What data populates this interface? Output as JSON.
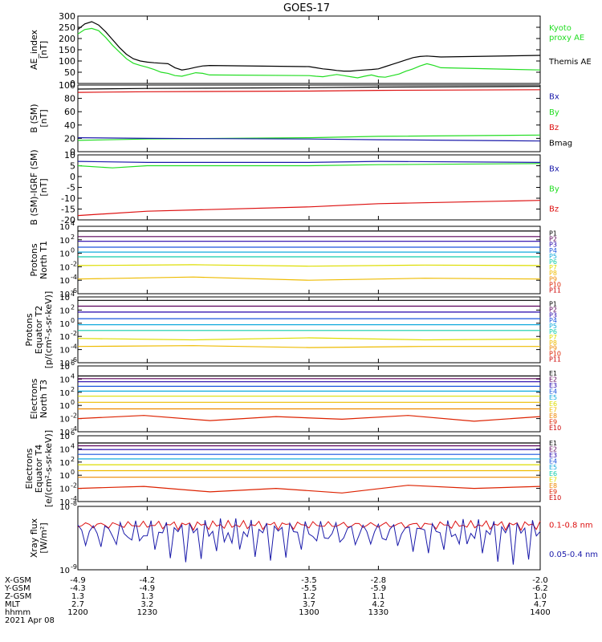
{
  "title": "GOES-17",
  "colors": {
    "black": "#000000",
    "green": "#22dd22",
    "red": "#dd1111",
    "blue": "#1a1aaa",
    "p1": "#000000",
    "p2": "#5a005a",
    "p3": "#2200aa",
    "p4": "#1a55dd",
    "p5": "#11aadd",
    "p6": "#11ccaa",
    "p7": "#dddd00",
    "p8": "#eebb00",
    "p9": "#ee8800",
    "p10": "#dd2200",
    "p11": "#cc0000"
  },
  "chart_data": [
    {
      "type": "line",
      "ylabel": [
        "AE_index",
        "[nT]"
      ],
      "ylim": [
        0,
        300
      ],
      "yticks": [
        "0",
        "50",
        "100",
        "150",
        "200",
        "250",
        "300"
      ],
      "legend": [
        {
          "text": "Kyoto",
          "color": "green"
        },
        {
          "text": "proxy AE",
          "color": "green"
        },
        {
          "text": "Themis AE",
          "color": "black"
        }
      ],
      "series": [
        {
          "name": "Themis AE",
          "color": "black",
          "x": [
            1200,
            1203,
            1206,
            1209,
            1212,
            1215,
            1218,
            1221,
            1224,
            1227,
            1230,
            1233,
            1236,
            1239,
            1242,
            1245,
            1248,
            1251,
            1254,
            1257,
            1300,
            1303,
            1306,
            1309,
            1312,
            1315,
            1318,
            1321,
            1324,
            1327,
            1330,
            1333,
            1336,
            1339,
            1342,
            1345,
            1348,
            1351,
            1354,
            1357,
            1400
          ],
          "y": [
            240,
            265,
            275,
            260,
            230,
            195,
            160,
            130,
            110,
            100,
            95,
            92,
            90,
            88,
            70,
            60,
            65,
            72,
            78,
            80,
            75,
            70,
            65,
            62,
            58,
            55,
            55,
            58,
            60,
            62,
            65,
            75,
            85,
            95,
            105,
            115,
            120,
            122,
            120,
            118,
            125
          ]
        },
        {
          "name": "Kyoto proxy AE",
          "color": "green",
          "x": [
            1200,
            1203,
            1206,
            1209,
            1212,
            1215,
            1218,
            1221,
            1224,
            1227,
            1230,
            1233,
            1236,
            1239,
            1242,
            1245,
            1248,
            1251,
            1254,
            1257,
            1300,
            1303,
            1306,
            1309,
            1312,
            1315,
            1318,
            1321,
            1324,
            1327,
            1330,
            1333,
            1336,
            1339,
            1342,
            1345,
            1348,
            1351,
            1354,
            1357,
            1400
          ],
          "y": [
            220,
            240,
            245,
            235,
            205,
            170,
            140,
            110,
            90,
            80,
            72,
            62,
            50,
            45,
            35,
            32,
            40,
            48,
            45,
            38,
            35,
            32,
            30,
            35,
            40,
            35,
            30,
            25,
            32,
            38,
            30,
            28,
            35,
            42,
            55,
            65,
            78,
            88,
            80,
            70,
            60
          ]
        }
      ]
    },
    {
      "type": "line",
      "ylabel": [
        "B (SM)",
        "[nT]"
      ],
      "ylim": [
        0,
        100
      ],
      "yticks": [
        "0",
        "20",
        "40",
        "60",
        "80",
        "100"
      ],
      "legend": [
        {
          "text": "Bx",
          "color": "blue"
        },
        {
          "text": "By",
          "color": "green"
        },
        {
          "text": "Bz",
          "color": "red"
        },
        {
          "text": "Bmag",
          "color": "black"
        }
      ],
      "series": [
        {
          "name": "Bmag",
          "color": "black",
          "x": [
            1200,
            1230,
            1300,
            1330,
            1400
          ],
          "y": [
            94,
            95,
            96,
            97,
            98
          ]
        },
        {
          "name": "Bz",
          "color": "red",
          "x": [
            1200,
            1230,
            1300,
            1330,
            1400
          ],
          "y": [
            89,
            90,
            91,
            92,
            93
          ]
        },
        {
          "name": "By",
          "color": "green",
          "x": [
            1200,
            1230,
            1300,
            1330,
            1400
          ],
          "y": [
            17,
            19,
            21,
            23,
            25
          ]
        },
        {
          "name": "Bx",
          "color": "blue",
          "x": [
            1200,
            1230,
            1300,
            1330,
            1400
          ],
          "y": [
            21,
            20,
            19,
            18,
            16
          ]
        }
      ]
    },
    {
      "type": "line",
      "ylabel": [
        "B (SM)-IGRF (SM)",
        "[nT]"
      ],
      "ylim": [
        -20,
        10
      ],
      "yticks": [
        "-20",
        "-15",
        "-10",
        "-5",
        "0",
        "5",
        "10"
      ],
      "legend": [
        {
          "text": "Bx",
          "color": "blue"
        },
        {
          "text": "By",
          "color": "green"
        },
        {
          "text": "Bz",
          "color": "red"
        }
      ],
      "series": [
        {
          "name": "Bx",
          "color": "blue",
          "x": [
            1200,
            1230,
            1300,
            1330,
            1400
          ],
          "y": [
            7,
            6.5,
            6.5,
            7,
            6.5
          ]
        },
        {
          "name": "By",
          "color": "green",
          "x": [
            1200,
            1215,
            1230,
            1300,
            1330,
            1400
          ],
          "y": [
            5,
            4,
            5,
            5,
            5.5,
            6
          ]
        },
        {
          "name": "Bz",
          "color": "red",
          "x": [
            1200,
            1230,
            1300,
            1330,
            1400
          ],
          "y": [
            -18,
            -16,
            -14,
            -12.5,
            -11
          ]
        }
      ]
    },
    {
      "type": "line",
      "scale": "log",
      "ylabel": [
        "Protons",
        "North T1"
      ],
      "ylim": [
        1e-06,
        10000.0
      ],
      "ytick_bases": [
        "10",
        "10",
        "10",
        "10",
        "10",
        "10"
      ],
      "ytick_exps": [
        "4",
        "2",
        "0",
        "-2",
        "-4",
        "-6"
      ],
      "legend": [
        {
          "text": "P1",
          "color": "p1"
        },
        {
          "text": "P2",
          "color": "p2"
        },
        {
          "text": "P3",
          "color": "p3"
        },
        {
          "text": "P4",
          "color": "p4"
        },
        {
          "text": "P5",
          "color": "p5"
        },
        {
          "text": "P6",
          "color": "p6"
        },
        {
          "text": "P7",
          "color": "p7"
        },
        {
          "text": "P8",
          "color": "p8"
        },
        {
          "text": "P9",
          "color": "p9"
        },
        {
          "text": "P10",
          "color": "p10"
        },
        {
          "text": "P11",
          "color": "p11"
        }
      ],
      "series": [
        {
          "name": "P1",
          "color": "p1",
          "levels": [
            2000
          ]
        },
        {
          "name": "P2",
          "color": "p2",
          "levels": [
            300
          ]
        },
        {
          "name": "P3",
          "color": "p3",
          "levels": [
            60
          ]
        },
        {
          "name": "P4",
          "color": "p4",
          "levels": [
            8
          ]
        },
        {
          "name": "P5",
          "color": "p5",
          "levels": [
            1.5
          ]
        },
        {
          "name": "P6",
          "color": "p6",
          "levels": [
            0.3
          ]
        },
        {
          "name": "P7",
          "color": "p7",
          "levels": [
            0.015,
            0.02,
            0.012,
            0.018,
            0.015
          ]
        },
        {
          "name": "P8",
          "color": "p8",
          "levels": [
            0.00015,
            0.0003,
            0.0001,
            0.0002,
            0.00015
          ]
        }
      ]
    },
    {
      "type": "line",
      "scale": "log",
      "ylabel": [
        "Protons",
        "Equator T2",
        "[p/(cm²-s-sr-keV)]"
      ],
      "ylim": [
        1e-06,
        10000.0
      ],
      "ytick_bases": [
        "10",
        "10",
        "10",
        "10",
        "10",
        "10"
      ],
      "ytick_exps": [
        "4",
        "2",
        "0",
        "-2",
        "-4",
        "-6"
      ],
      "legend": [
        {
          "text": "P1",
          "color": "p1"
        },
        {
          "text": "P2",
          "color": "p2"
        },
        {
          "text": "P3",
          "color": "p3"
        },
        {
          "text": "P4",
          "color": "p4"
        },
        {
          "text": "P5",
          "color": "p5"
        },
        {
          "text": "P6",
          "color": "p6"
        },
        {
          "text": "P7",
          "color": "p7"
        },
        {
          "text": "P8",
          "color": "p8"
        },
        {
          "text": "P9",
          "color": "p9"
        },
        {
          "text": "P10",
          "color": "p10"
        },
        {
          "text": "P11",
          "color": "p11"
        }
      ],
      "series": [
        {
          "name": "P1",
          "color": "p1",
          "levels": [
            3000
          ]
        },
        {
          "name": "P2",
          "color": "p2",
          "levels": [
            400
          ]
        },
        {
          "name": "P3",
          "color": "p3",
          "levels": [
            50
          ]
        },
        {
          "name": "P4",
          "color": "p4",
          "levels": [
            5
          ]
        },
        {
          "name": "P5",
          "color": "p5",
          "levels": [
            0.6
          ]
        },
        {
          "name": "P6",
          "color": "p6",
          "levels": [
            0.08
          ]
        },
        {
          "name": "P7",
          "color": "p7",
          "levels": [
            0.005,
            0.003,
            0.006,
            0.003,
            0.004
          ]
        },
        {
          "name": "P8",
          "color": "p8",
          "levels": [
            0.0003,
            0.0004,
            0.0002,
            0.0003,
            0.0003
          ]
        }
      ]
    },
    {
      "type": "line",
      "scale": "log",
      "ylabel": [
        "Electrons",
        "North T3"
      ],
      "ylim": [
        0.0001,
        1000000.0
      ],
      "ytick_bases": [
        "10",
        "10",
        "10",
        "10",
        "10",
        "10"
      ],
      "ytick_exps": [
        "6",
        "4",
        "2",
        "0",
        "-2",
        "-4"
      ],
      "legend": [
        {
          "text": "E1",
          "color": "p1"
        },
        {
          "text": "E2",
          "color": "p2"
        },
        {
          "text": "E3",
          "color": "p3"
        },
        {
          "text": "E4",
          "color": "p4"
        },
        {
          "text": "E5",
          "color": "p5"
        },
        {
          "text": "E6",
          "color": "p7"
        },
        {
          "text": "E7",
          "color": "p8"
        },
        {
          "text": "E8",
          "color": "p9"
        },
        {
          "text": "E9",
          "color": "p10"
        },
        {
          "text": "E10",
          "color": "p11"
        }
      ],
      "series": [
        {
          "name": "E1",
          "color": "p1",
          "levels": [
            30000
          ]
        },
        {
          "name": "E2",
          "color": "p2",
          "levels": [
            12000
          ]
        },
        {
          "name": "E3",
          "color": "p3",
          "levels": [
            4000
          ]
        },
        {
          "name": "E4",
          "color": "p4",
          "levels": [
            800
          ]
        },
        {
          "name": "E5",
          "color": "p5",
          "levels": [
            150
          ]
        },
        {
          "name": "E6",
          "color": "p7",
          "levels": [
            25
          ]
        },
        {
          "name": "E7",
          "color": "p8",
          "levels": [
            3
          ]
        },
        {
          "name": "E8",
          "color": "p9",
          "levels": [
            0.3
          ]
        },
        {
          "name": "E9",
          "color": "p10",
          "levels": [
            0.01,
            0.03,
            0.005,
            0.02,
            0.008,
            0.03,
            0.004,
            0.02
          ]
        }
      ]
    },
    {
      "type": "line",
      "scale": "log",
      "ylabel": [
        "Electrons",
        "Equator T4",
        "[e/(cm²-s-sr-keV)]"
      ],
      "ylim": [
        0.0001,
        1000000.0
      ],
      "ytick_bases": [
        "10",
        "10",
        "10",
        "10",
        "10",
        "10"
      ],
      "ytick_exps": [
        "6",
        "4",
        "2",
        "0",
        "-2",
        "-4"
      ],
      "legend": [
        {
          "text": "E1",
          "color": "p1"
        },
        {
          "text": "E2",
          "color": "p2"
        },
        {
          "text": "E3",
          "color": "p3"
        },
        {
          "text": "E4",
          "color": "p4"
        },
        {
          "text": "E5",
          "color": "p5"
        },
        {
          "text": "E6",
          "color": "p6"
        },
        {
          "text": "E7",
          "color": "p7"
        },
        {
          "text": "E8",
          "color": "p9"
        },
        {
          "text": "E9",
          "color": "p10"
        },
        {
          "text": "E10",
          "color": "p11"
        }
      ],
      "series": [
        {
          "name": "E1",
          "color": "p1",
          "levels": [
            80000
          ]
        },
        {
          "name": "E2",
          "color": "p2",
          "levels": [
            30000
          ]
        },
        {
          "name": "E3",
          "color": "p3",
          "levels": [
            8000
          ]
        },
        {
          "name": "E4",
          "color": "p4",
          "levels": [
            1500
          ]
        },
        {
          "name": "E5",
          "color": "p5",
          "levels": [
            300
          ]
        },
        {
          "name": "E6",
          "color": "p7",
          "levels": [
            40
          ]
        },
        {
          "name": "E7",
          "color": "p8",
          "levels": [
            5
          ]
        },
        {
          "name": "E8",
          "color": "p9",
          "levels": [
            0.5
          ]
        },
        {
          "name": "E9",
          "color": "p10",
          "levels": [
            0.01,
            0.02,
            0.003,
            0.01,
            0.002,
            0.03,
            0.01,
            0.02
          ]
        }
      ]
    },
    {
      "type": "line",
      "scale": "log",
      "ylabel": [
        "Xray flux",
        "[W/m²]"
      ],
      "ylim": [
        1e-09,
        1e-08
      ],
      "ytick_bases": [
        "10",
        "10"
      ],
      "ytick_exps": [
        "-8",
        "-9"
      ],
      "legend": [
        {
          "text": "0.1-0.8 nm",
          "color": "red"
        },
        {
          "text": "0.05-0.4 nm",
          "color": "blue"
        }
      ],
      "series": [
        {
          "name": "0.1-0.8 nm",
          "color": "red",
          "band": [
            4.2e-09,
            6e-09
          ]
        },
        {
          "name": "0.05-0.4 nm",
          "color": "blue",
          "band": [
            1.2e-09,
            6.5e-09
          ]
        }
      ]
    }
  ],
  "xaxis": {
    "range": [
      1200,
      1400
    ],
    "ticks": [
      1200,
      1230,
      1300,
      1330,
      1400
    ],
    "rows": [
      {
        "label": "X-GSM",
        "values": [
          "-4.9",
          "-4.2",
          "-3.5",
          "-2.8",
          "-2.0"
        ]
      },
      {
        "label": "Y-GSM",
        "values": [
          "-4.3",
          "-4.9",
          "-5.5",
          "-5.9",
          "-6.2"
        ]
      },
      {
        "label": "Z-GSM",
        "values": [
          "1.3",
          "1.3",
          "1.2",
          "1.1",
          "1.0"
        ]
      },
      {
        "label": "MLT",
        "values": [
          "2.7",
          "3.2",
          "3.7",
          "4.2",
          "4.7"
        ]
      },
      {
        "label": "hhmm",
        "values": [
          "1200",
          "1230",
          "1300",
          "1330",
          "1400"
        ]
      }
    ],
    "date": "2021 Apr 08"
  }
}
